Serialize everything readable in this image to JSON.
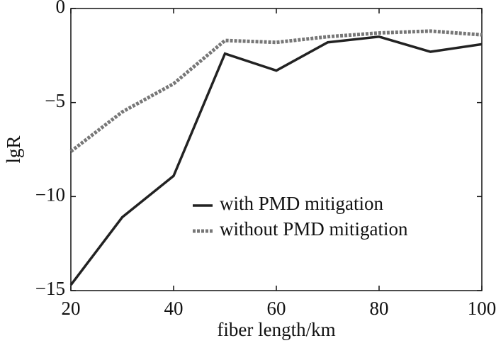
{
  "chart_data": {
    "type": "line",
    "x_label": "fiber length/km",
    "y_label": "lgR",
    "x": [
      20,
      30,
      40,
      50,
      60,
      70,
      80,
      90,
      100
    ],
    "series": [
      {
        "name": "with PMD mitigation",
        "color": "#222222",
        "dash": "solid",
        "values": [
          -14.7,
          -11.1,
          -8.9,
          -2.4,
          -3.3,
          -1.8,
          -1.5,
          -2.3,
          -1.9
        ]
      },
      {
        "name": "without PMD mitigation",
        "color": "#777777",
        "dash": "dotted",
        "values": [
          -7.6,
          -5.5,
          -4.0,
          -1.7,
          -1.8,
          -1.5,
          -1.3,
          -1.2,
          -1.4
        ]
      }
    ],
    "xlim": [
      20,
      100
    ],
    "xticks": [
      20,
      40,
      60,
      80,
      100
    ],
    "ylim": [
      -15,
      0
    ],
    "yticks": [
      {
        "value": -15,
        "label": "−15"
      },
      {
        "value": -10,
        "label": "−10"
      },
      {
        "value": -5,
        "label": "−5"
      },
      0
    ],
    "legend": "lower right"
  }
}
